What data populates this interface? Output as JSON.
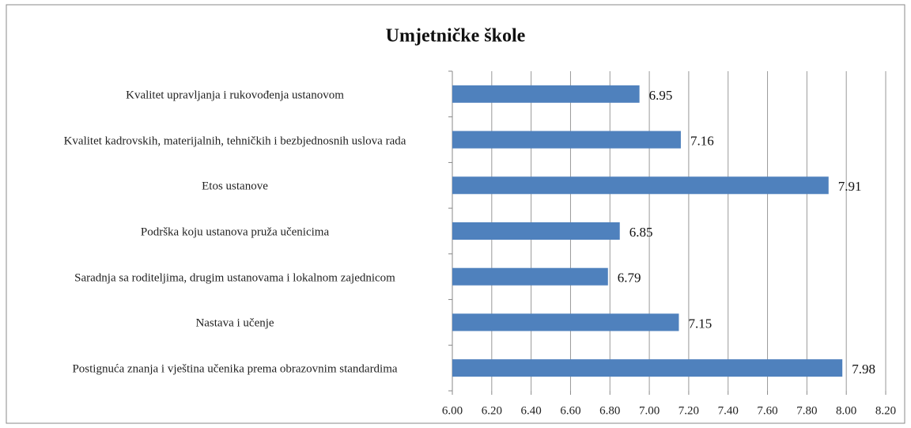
{
  "chart_data": {
    "type": "barh",
    "title": "Umjetničke škole",
    "categories": [
      "Kvalitet upravljanja i rukovođenja ustanovom",
      "Kvalitet kadrovskih, materijalnih, tehničkih i bezbjednosnih uslova rada",
      "Etos ustanove",
      "Podrška koju ustanova pruža učenicima",
      "Saradnja sa roditeljima, drugim ustanovama i lokalnom zajednicom",
      "Nastava i učenje",
      "Postignuća znanja i vještina učenika prema obrazovnim standardima"
    ],
    "values": [
      6.95,
      7.16,
      7.91,
      6.85,
      6.79,
      7.15,
      7.98
    ],
    "color": "#4f81bd",
    "xlim": [
      6,
      8.2
    ],
    "xticks": [
      {
        "value": 6,
        "label": "6.00"
      },
      {
        "value": 6.2,
        "label": "6.20"
      },
      {
        "value": 6.4,
        "label": "6.40"
      },
      {
        "value": 6.6,
        "label": "6.60"
      },
      {
        "value": 6.8,
        "label": "6.80"
      },
      {
        "value": 7,
        "label": "7.00"
      },
      {
        "value": 7.2,
        "label": "7.20"
      },
      {
        "value": 7.4,
        "label": "7.40"
      },
      {
        "value": 7.6,
        "label": "7.60"
      },
      {
        "value": 7.8,
        "label": "7.80"
      },
      {
        "value": 8,
        "label": "8.00"
      },
      {
        "value": 8.2,
        "label": "8.20"
      }
    ],
    "grid": true
  }
}
